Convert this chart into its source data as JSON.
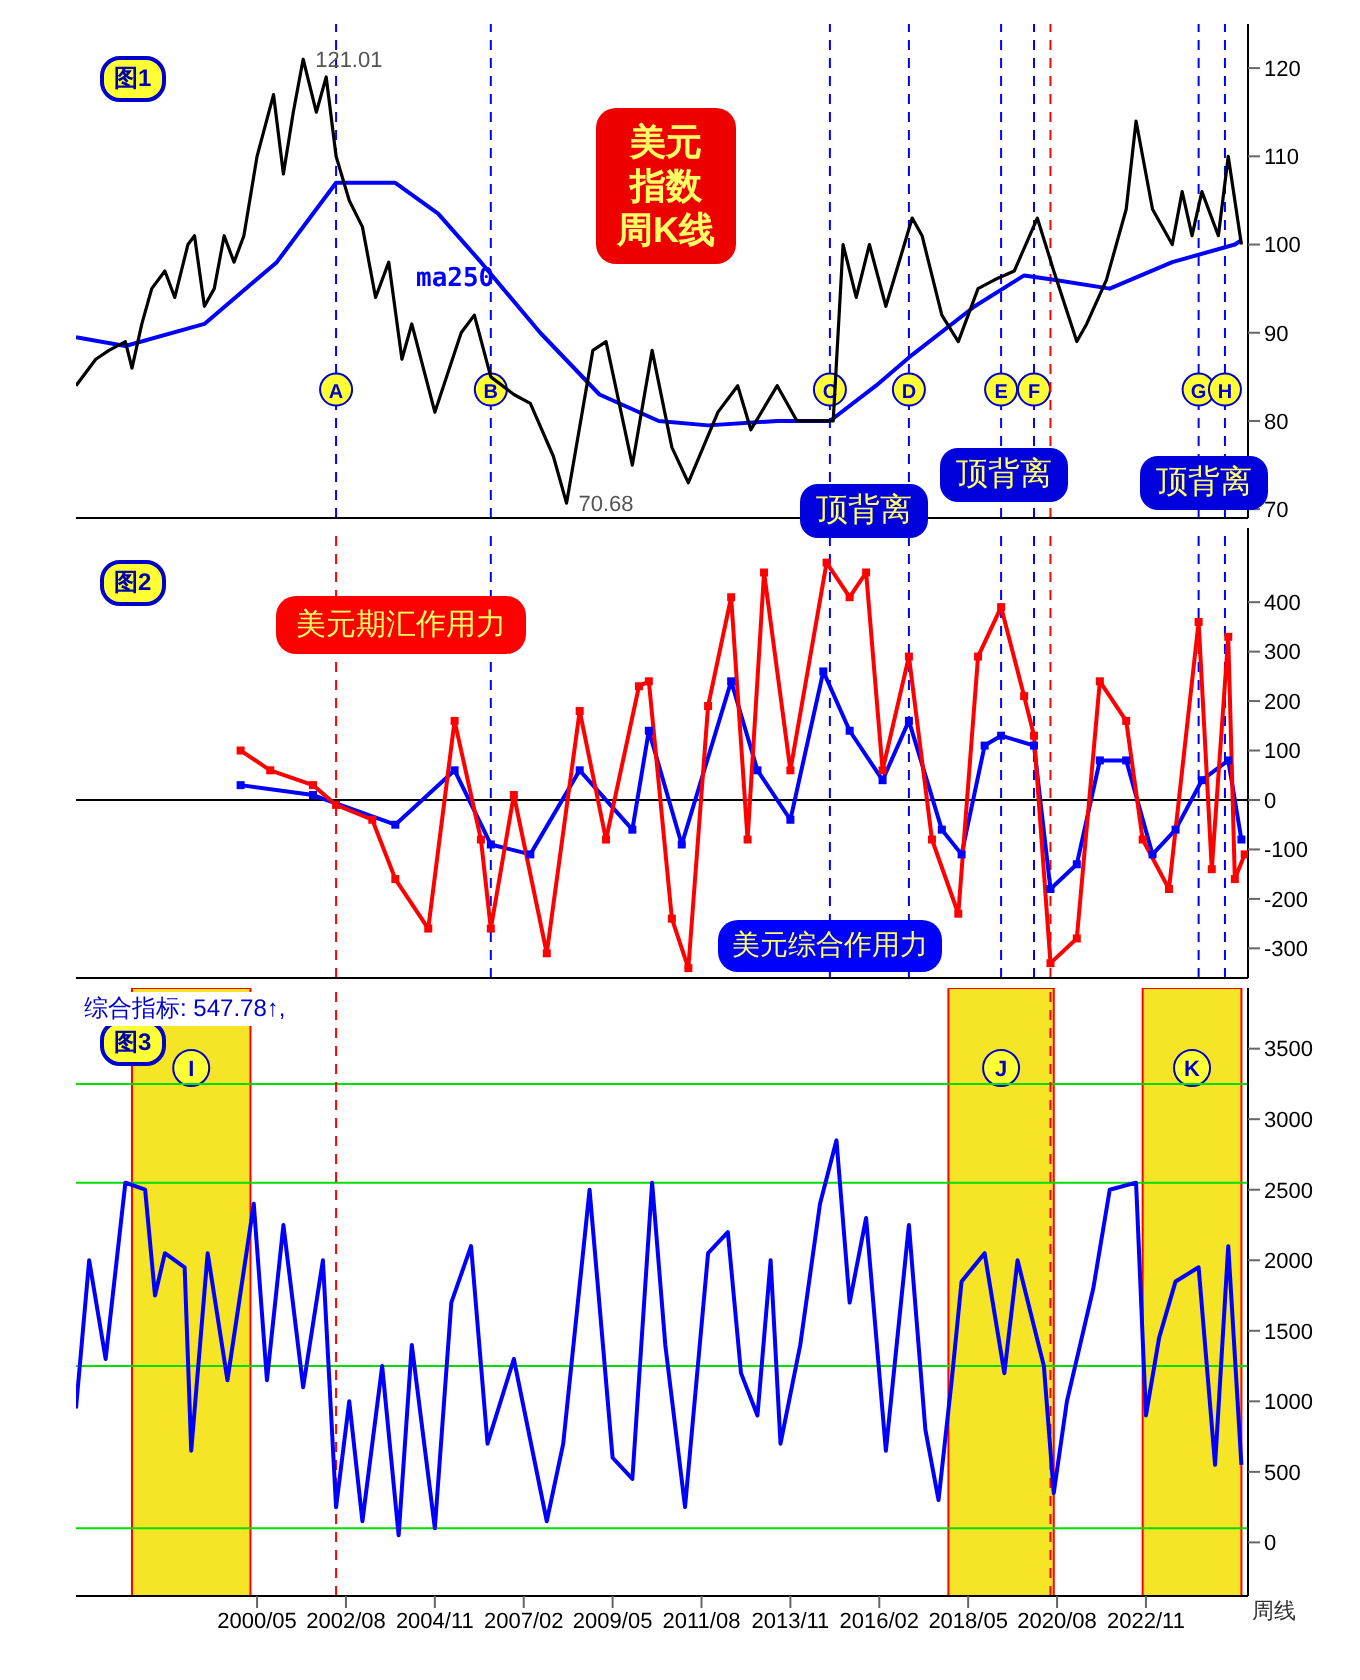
{
  "chart_data": [
    {
      "type": "line",
      "title": "图1",
      "annotations": [
        "美元指数周K线",
        "顶背离",
        "顶背离",
        "顶背离"
      ],
      "xlim": [
        "1995-10",
        "2025-06"
      ],
      "ylim": [
        69,
        125
      ],
      "yticks": [
        70,
        80,
        90,
        100,
        110,
        120
      ],
      "tick_labels": "y",
      "series": [
        {
          "color": "#000000",
          "x": [
            "1995-10",
            "1996-04",
            "1996-08",
            "1997-01",
            "1997-03",
            "1997-06",
            "1997-09",
            "1998-01",
            "1998-04",
            "1998-08",
            "1998-10",
            "1999-01",
            "1999-04",
            "1999-07",
            "1999-10",
            "2000-01",
            "2000-05",
            "2000-10",
            "2001-01",
            "2001-04",
            "2001-07",
            "2001-11",
            "2002-02",
            "2002-05",
            "2002-09",
            "2003-01",
            "2003-05",
            "2003-09",
            "2004-01",
            "2004-04",
            "2004-11",
            "2005-07",
            "2005-11",
            "2006-04",
            "2006-11",
            "2007-04",
            "2007-11",
            "2008-03",
            "2008-11",
            "2009-03",
            "2009-11",
            "2010-05",
            "2010-11",
            "2011-04",
            "2012-01",
            "2012-07",
            "2012-11",
            "2013-07",
            "2014-01",
            "2014-07",
            "2014-12",
            "2015-03",
            "2015-07",
            "2015-11",
            "2016-04",
            "2016-12",
            "2017-03",
            "2017-09",
            "2018-02",
            "2018-08",
            "2019-01",
            "2019-07",
            "2020-02",
            "2020-07",
            "2021-02",
            "2021-05",
            "2021-11",
            "2022-05",
            "2022-08",
            "2023-01",
            "2023-07",
            "2023-10",
            "2024-01",
            "2024-04",
            "2024-09",
            "2024-12",
            "2025-04"
          ],
          "values": [
            84,
            87,
            88,
            89,
            86,
            91,
            95,
            97,
            94,
            100,
            101,
            93,
            95,
            101,
            98,
            101,
            110,
            117,
            108,
            115,
            121.01,
            115,
            119,
            110,
            105,
            102,
            94,
            98,
            87,
            91,
            81,
            90,
            92,
            85,
            83,
            82,
            76,
            70.68,
            88,
            89,
            75,
            88,
            77,
            73,
            81,
            84,
            79,
            84,
            80,
            80,
            80,
            100,
            94,
            100,
            93,
            103,
            101,
            92,
            89,
            95,
            96,
            97,
            103,
            97,
            89,
            91,
            96,
            104,
            114,
            104,
            100,
            106,
            101,
            106,
            101,
            110,
            100
          ],
          "value_labels": [
            null,
            null,
            null,
            null,
            null,
            null,
            null,
            null,
            null,
            null,
            null,
            null,
            null,
            null,
            null,
            null,
            null,
            null,
            null,
            null,
            "121.01",
            null,
            null,
            null,
            null,
            null,
            null,
            null,
            null,
            null,
            null,
            null,
            null,
            null,
            null,
            null,
            null,
            "70.68",
            null,
            null,
            null,
            null,
            null,
            null,
            null,
            null,
            null,
            null,
            null,
            null,
            null,
            null,
            null,
            null,
            null,
            null,
            null,
            null,
            null,
            null,
            null,
            null,
            null,
            null,
            null,
            null,
            null,
            null,
            null,
            null,
            null,
            null,
            null,
            null,
            null,
            null,
            null
          ]
        },
        {
          "name": "ma250",
          "color": "#0000ff",
          "x": [
            "1995-10",
            "1997-01",
            "1999-01",
            "2000-11",
            "2002-05",
            "2003-11",
            "2004-12",
            "2006-01",
            "2007-07",
            "2009-01",
            "2010-07",
            "2011-10",
            "2013-07",
            "2014-11",
            "2016-01",
            "2016-12",
            "2018-07",
            "2019-10",
            "2020-07",
            "2021-12",
            "2023-07",
            "2025-02",
            "2025-04"
          ],
          "values": [
            89.5,
            88.5,
            91,
            98,
            107,
            107,
            103.5,
            98,
            90,
            83,
            80,
            79.5,
            80,
            80,
            84,
            87.5,
            93,
            96.5,
            96,
            95,
            98,
            100,
            100.5
          ]
        }
      ],
      "ref_lines": [
        {
          "axis": "x",
          "value": "2002-05",
          "label": "A",
          "color": "#0000ff",
          "line_style": "dashed"
        },
        {
          "axis": "x",
          "value": "2006-04",
          "label": "B",
          "color": "#0000ff",
          "line_style": "dashed"
        },
        {
          "axis": "x",
          "value": "2014-11",
          "label": "C",
          "color": "#0000ff",
          "line_style": "dashed"
        },
        {
          "axis": "x",
          "value": "2016-11",
          "label": "D",
          "color": "#0000ff",
          "line_style": "dashed"
        },
        {
          "axis": "x",
          "value": "2019-03",
          "label": "E",
          "color": "#0000ff",
          "line_style": "dashed"
        },
        {
          "axis": "x",
          "value": "2020-01",
          "label": "F",
          "color": "#0000ff",
          "line_style": "dashed"
        },
        {
          "axis": "x",
          "value": "2020-06",
          "color": "#ff0000",
          "line_style": "dashed"
        },
        {
          "axis": "x",
          "value": "2024-03",
          "label": "G",
          "color": "#0000ff",
          "line_style": "dashed"
        },
        {
          "axis": "x",
          "value": "2024-11",
          "label": "H",
          "color": "#0000ff",
          "line_style": "dashed"
        }
      ]
    },
    {
      "type": "line",
      "title": "图2",
      "marker": "square",
      "xlim": [
        "1995-10",
        "2025-06"
      ],
      "ylim": [
        -360,
        550
      ],
      "yticks": [
        -300,
        -200,
        -100,
        0,
        100,
        200,
        300,
        400
      ],
      "tick_labels": "y",
      "series": [
        {
          "name": "美元期汇作用力",
          "color": "#ff0000",
          "x": [
            "1999-12",
            "2000-09",
            "2001-10",
            "2002-05",
            "2003-04",
            "2003-11",
            "2004-09",
            "2005-05",
            "2006-01",
            "2006-04",
            "2006-11",
            "2007-09",
            "2008-07",
            "2009-03",
            "2010-01",
            "2010-04",
            "2010-11",
            "2011-04",
            "2011-10",
            "2012-05",
            "2012-10",
            "2013-03",
            "2013-11",
            "2014-10",
            "2015-05",
            "2015-10",
            "2016-03",
            "2016-11",
            "2017-06",
            "2018-02",
            "2018-08",
            "2019-03",
            "2019-10",
            "2020-01",
            "2020-06",
            "2021-02",
            "2021-09",
            "2022-05",
            "2022-10",
            "2023-06",
            "2024-03",
            "2024-07",
            "2024-12",
            "2025-02",
            "2025-05"
          ],
          "values": [
            100,
            60,
            30,
            -10,
            -40,
            -160,
            -260,
            160,
            -80,
            -260,
            10,
            -310,
            180,
            -80,
            230,
            240,
            -240,
            -340,
            190,
            410,
            -80,
            460,
            60,
            480,
            410,
            460,
            60,
            290,
            -80,
            -230,
            290,
            390,
            210,
            130,
            -330,
            -280,
            240,
            160,
            -80,
            -180,
            360,
            -140,
            330,
            -160,
            -110
          ]
        },
        {
          "name": "美元综合作用力",
          "color": "#0000ff",
          "x": [
            "1999-12",
            "2001-10",
            "2003-11",
            "2005-05",
            "2006-04",
            "2007-04",
            "2008-07",
            "2009-11",
            "2010-04",
            "2011-02",
            "2012-05",
            "2013-01",
            "2013-11",
            "2014-09",
            "2015-05",
            "2016-03",
            "2016-11",
            "2017-09",
            "2018-03",
            "2018-10",
            "2019-03",
            "2020-01",
            "2020-06",
            "2021-02",
            "2021-09",
            "2022-05",
            "2023-01",
            "2023-08",
            "2024-04",
            "2024-12",
            "2025-04"
          ],
          "values": [
            30,
            10,
            -50,
            60,
            -90,
            -110,
            60,
            -60,
            140,
            -90,
            240,
            60,
            -40,
            260,
            140,
            40,
            160,
            -60,
            -110,
            110,
            130,
            110,
            -180,
            -130,
            80,
            80,
            -110,
            -60,
            40,
            80,
            -80
          ]
        }
      ],
      "ref_lines": [
        {
          "axis": "y",
          "value": 0,
          "color": "#000000",
          "line_style": "solid"
        },
        {
          "axis": "x",
          "value": "2002-05",
          "color": "#ff0000",
          "line_style": "dashed"
        },
        {
          "axis": "x",
          "value": "2006-04",
          "color": "#0000ff",
          "line_style": "dashed"
        },
        {
          "axis": "x",
          "value": "2014-11",
          "color": "#0000ff",
          "line_style": "dashed"
        },
        {
          "axis": "x",
          "value": "2016-11",
          "color": "#0000ff",
          "line_style": "dashed"
        },
        {
          "axis": "x",
          "value": "2019-03",
          "color": "#0000ff",
          "line_style": "dashed"
        },
        {
          "axis": "x",
          "value": "2020-01",
          "color": "#0000ff",
          "line_style": "dashed"
        },
        {
          "axis": "x",
          "value": "2020-06",
          "color": "#ff0000",
          "line_style": "dashed"
        },
        {
          "axis": "x",
          "value": "2024-03",
          "color": "#0000ff",
          "line_style": "dashed"
        },
        {
          "axis": "x",
          "value": "2024-11",
          "color": "#0000ff",
          "line_style": "dashed"
        }
      ]
    },
    {
      "type": "line",
      "title": "图3",
      "annotations": [
        "综合指标: 547.78↑,",
        "周线"
      ],
      "xlim": [
        "1995-10",
        "2025-06"
      ],
      "ylim": [
        -380,
        3930
      ],
      "yticks": [
        0,
        500,
        1000,
        1500,
        2000,
        2500,
        3000,
        3500
      ],
      "xticks": [
        {
          "value": "2000-05",
          "label": "2000/05"
        },
        {
          "value": "2002-08",
          "label": "2002/08"
        },
        {
          "value": "2004-11",
          "label": "2004/11"
        },
        {
          "value": "2007-02",
          "label": "2007/02"
        },
        {
          "value": "2009-05",
          "label": "2009/05"
        },
        {
          "value": "2011-08",
          "label": "2011/08"
        },
        {
          "value": "2013-11",
          "label": "2013/11"
        },
        {
          "value": "2016-02",
          "label": "2016/02"
        },
        {
          "value": "2018-05",
          "label": "2018/05"
        },
        {
          "value": "2020-08",
          "label": "2020/08"
        },
        {
          "value": "2022-11",
          "label": "2022/11"
        }
      ],
      "series": [
        {
          "color": "#0000ff",
          "x": [
            "1995-10",
            "1996-02",
            "1996-07",
            "1997-01",
            "1997-07",
            "1997-10",
            "1998-01",
            "1998-07",
            "1998-09",
            "1999-02",
            "1999-08",
            "2000-04",
            "2000-08",
            "2001-01",
            "2001-07",
            "2002-01",
            "2002-05",
            "2002-09",
            "2003-01",
            "2003-07",
            "2003-12",
            "2004-04",
            "2004-11",
            "2005-04",
            "2005-10",
            "2006-03",
            "2006-11",
            "2007-09",
            "2008-02",
            "2008-10",
            "2009-05",
            "2009-11",
            "2010-05",
            "2010-09",
            "2011-03",
            "2011-10",
            "2012-04",
            "2012-08",
            "2013-01",
            "2013-05",
            "2013-08",
            "2014-02",
            "2014-08",
            "2015-01",
            "2015-05",
            "2015-10",
            "2016-04",
            "2016-11",
            "2017-04",
            "2017-08",
            "2017-12",
            "2018-03",
            "2018-10",
            "2019-04",
            "2019-08",
            "2020-04",
            "2020-07",
            "2020-11",
            "2021-03",
            "2021-07",
            "2021-12",
            "2022-08",
            "2022-11",
            "2023-03",
            "2023-08",
            "2024-03",
            "2024-08",
            "2024-12",
            "2025-04"
          ],
          "values": [
            950,
            2000,
            1300,
            2550,
            2500,
            1750,
            2050,
            1950,
            650,
            2050,
            1150,
            2400,
            1150,
            2250,
            1100,
            2000,
            250,
            1000,
            150,
            1250,
            50,
            1400,
            100,
            1700,
            2100,
            700,
            1300,
            150,
            700,
            2500,
            600,
            450,
            2550,
            1400,
            250,
            2050,
            2200,
            1200,
            900,
            2000,
            700,
            1400,
            2400,
            2850,
            1700,
            2300,
            650,
            2250,
            800,
            300,
            1150,
            1850,
            2050,
            1200,
            2000,
            1250,
            350,
            1000,
            1400,
            1800,
            2500,
            2550,
            900,
            1450,
            1850,
            1950,
            550,
            2100,
            550
          ]
        }
      ],
      "ref_lines": [
        {
          "axis": "y",
          "value": 100,
          "color": "#00dd00",
          "line_style": "solid"
        },
        {
          "axis": "y",
          "value": 1250,
          "color": "#00dd00",
          "line_style": "solid"
        },
        {
          "axis": "y",
          "value": 2550,
          "color": "#00dd00",
          "line_style": "solid"
        },
        {
          "axis": "y",
          "value": 3250,
          "color": "#00dd00",
          "line_style": "solid"
        },
        {
          "axis": "x",
          "value": "2002-05",
          "color": "#ff0000",
          "line_style": "dashed"
        },
        {
          "axis": "x",
          "value": "2020-06",
          "color": "#ff0000",
          "line_style": "dashed"
        }
      ],
      "bands": [
        {
          "axis": "x",
          "from": "1997-03",
          "to": "2000-03",
          "label": "I",
          "color": "#f5e000"
        },
        {
          "axis": "x",
          "from": "2017-11",
          "to": "2020-07",
          "label": "J",
          "color": "#f5e000"
        },
        {
          "axis": "x",
          "from": "2022-10",
          "to": "2025-04",
          "label": "K",
          "color": "#f5e000"
        }
      ]
    }
  ]
}
